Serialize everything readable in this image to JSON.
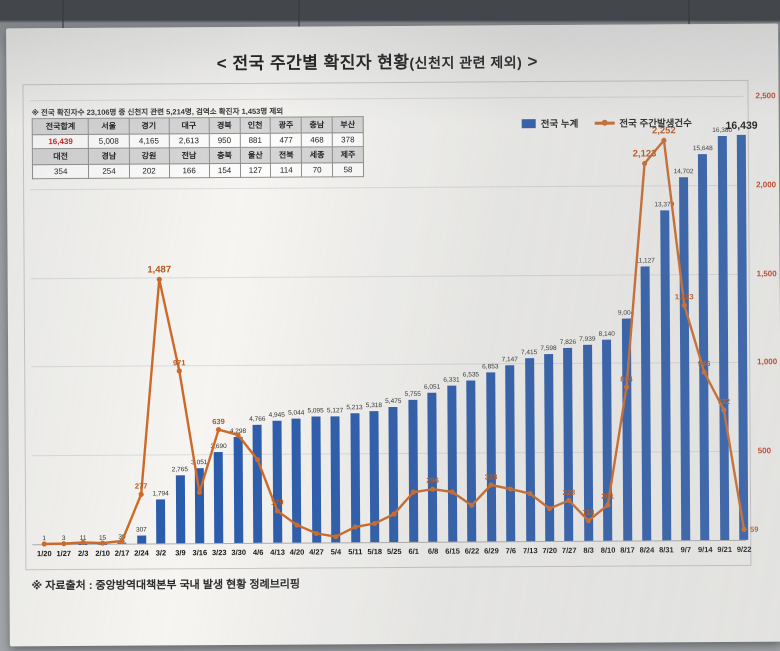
{
  "title": {
    "prefix": "< 전국 주간별 확진자 현황",
    "paren": "(신천지 관련 제외)",
    "suffix": " >"
  },
  "note": "※ 전국 확진자수 23,106명 중 신천지 관련 5,214명, 검역소 확진자 1,453명 제외",
  "footer": "※ 자료출처 : 중앙방역대책본부 국내 발생 현황 정례브리핑",
  "legend": [
    {
      "label": "전국 누계",
      "marker": "bar",
      "color": "#2b5cad"
    },
    {
      "label": "전국 주간발생건수",
      "marker": "line-dot",
      "color": "#cf6a28"
    }
  ],
  "region_table": {
    "row_groups": [
      {
        "headers": [
          "전국합계",
          "서울",
          "경기",
          "대구",
          "경북",
          "인천",
          "광주",
          "충남",
          "부산"
        ],
        "values": [
          "16,439",
          "5,008",
          "4,165",
          "2,613",
          "950",
          "881",
          "477",
          "468",
          "378"
        ]
      },
      {
        "headers": [
          "대전",
          "경남",
          "강원",
          "전남",
          "충북",
          "울산",
          "전북",
          "세종",
          "제주"
        ],
        "values": [
          "354",
          "254",
          "202",
          "166",
          "154",
          "127",
          "114",
          "70",
          "58"
        ]
      }
    ],
    "highlight_value": "16,439"
  },
  "chart_data": {
    "type": "bar",
    "title": "< 전국 주간별 확진자 현황(신천지 관련 제외) >",
    "categories": [
      "1/20",
      "1/27",
      "2/3",
      "2/10",
      "2/17",
      "2/24",
      "3/2",
      "3/9",
      "3/16",
      "3/23",
      "3/30",
      "4/6",
      "4/13",
      "4/20",
      "4/27",
      "5/4",
      "5/11",
      "5/18",
      "5/25",
      "6/1",
      "6/8",
      "6/15",
      "6/22",
      "6/29",
      "7/6",
      "7/13",
      "7/20",
      "7/27",
      "8/3",
      "8/10",
      "8/17",
      "8/24",
      "8/31",
      "9/7",
      "9/14",
      "9/21",
      "9/22"
    ],
    "series": [
      {
        "name": "전국 누계",
        "type": "bar",
        "axis": "left",
        "color": "#2b5cad",
        "values": [
          1,
          3,
          11,
          15,
          30,
          307,
          1794,
          2765,
          3051,
          3690,
          4298,
          4766,
          4945,
          5044,
          5095,
          5127,
          5213,
          5318,
          5475,
          5755,
          6051,
          6331,
          6535,
          6853,
          7147,
          7415,
          7598,
          7826,
          7939,
          8140,
          9004,
          11127,
          13379,
          14702,
          15648,
          16380,
          16439
        ]
      },
      {
        "name": "전국 주간발생건수",
        "type": "line",
        "axis": "right",
        "color": "#cf6a28",
        "values": [
          1,
          2,
          8,
          4,
          15,
          277,
          1487,
          971,
          286,
          639,
          608,
          468,
          179,
          99,
          51,
          32,
          86,
          105,
          157,
          280,
          296,
          280,
          204,
          318,
          294,
          268,
          183,
          228,
          113,
          201,
          864,
          2123,
          2252,
          1323,
          946,
          732,
          59
        ]
      }
    ],
    "left_axis": {
      "min": 0,
      "max": 18000,
      "labels_visible": false
    },
    "right_axis": {
      "min": 0,
      "max": 2500,
      "ticks": [
        500,
        1000,
        1500,
        2000,
        2500
      ],
      "label_color": "#c8391f"
    },
    "grid": true,
    "legend_position": "top-right",
    "bar_labels_visible": true,
    "weekly_labeled_indices": [
      5,
      6,
      7,
      9,
      12,
      20,
      23,
      27,
      28,
      29,
      30,
      31,
      32,
      33,
      34,
      35,
      36
    ],
    "weekly_big_label_indices": [
      6,
      31,
      32
    ]
  }
}
